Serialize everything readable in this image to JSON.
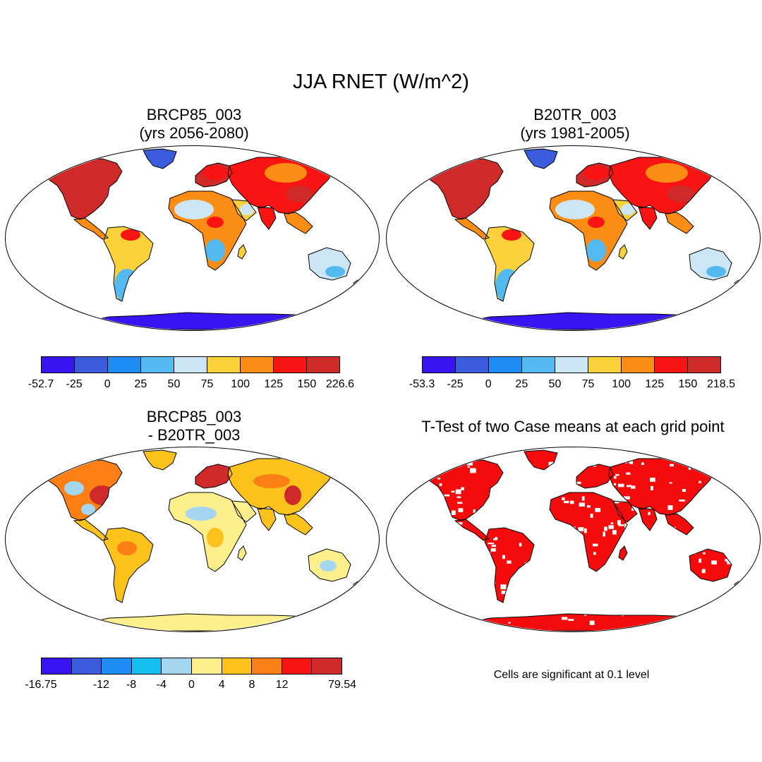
{
  "figure": {
    "title": "JJA RNET (W/m^2)",
    "note": "Cells are significant at 0.1 level"
  },
  "panels": [
    {
      "id": "future",
      "title_line1": "BRCP85_003",
      "title_line2": "(yrs 2056-2080)",
      "style": "absolute"
    },
    {
      "id": "historical",
      "title_line1": "B20TR_003",
      "title_line2": "(yrs 1981-2005)",
      "style": "absolute"
    },
    {
      "id": "difference",
      "title_line1": "BRCP85_003",
      "title_line2": "- B20TR_003",
      "style": "difference"
    },
    {
      "id": "ttest",
      "title_line1": "T-Test of two Case means at each grid point",
      "title_line2": "",
      "style": "significance"
    }
  ],
  "colorbars": [
    {
      "id": "future",
      "colors": [
        "#3a14f0",
        "#3a5bdc",
        "#1e8cf5",
        "#53b9ee",
        "#cce6f5",
        "#fbd13b",
        "#fb8c14",
        "#f91414",
        "#cf2a2a"
      ],
      "labels": [
        "-52.7",
        "-25",
        "0",
        "25",
        "50",
        "75",
        "100",
        "125",
        "150",
        "226.6"
      ]
    },
    {
      "id": "historical",
      "colors": [
        "#3a14f0",
        "#3a5bdc",
        "#1e8cf5",
        "#53b9ee",
        "#cce6f5",
        "#fbd13b",
        "#fb8c14",
        "#f91414",
        "#cf2a2a"
      ],
      "labels": [
        "-53.3",
        "-25",
        "0",
        "25",
        "50",
        "75",
        "100",
        "125",
        "150",
        "218.5"
      ]
    },
    {
      "id": "difference",
      "colors": [
        "#3a14f0",
        "#3a5bdc",
        "#1e8cf5",
        "#14bff0",
        "#a4d6f2",
        "#fdf08c",
        "#fbc21c",
        "#fb7f14",
        "#f91414",
        "#cf2a2a"
      ],
      "labels": [
        "-16.75",
        "",
        "-12",
        "-8",
        "-4",
        "0",
        "4",
        "8",
        "12",
        "",
        "79.54"
      ]
    }
  ],
  "colors": {
    "significant": "#f40b0b",
    "coast": "#000000",
    "ocean": "#ffffff"
  }
}
